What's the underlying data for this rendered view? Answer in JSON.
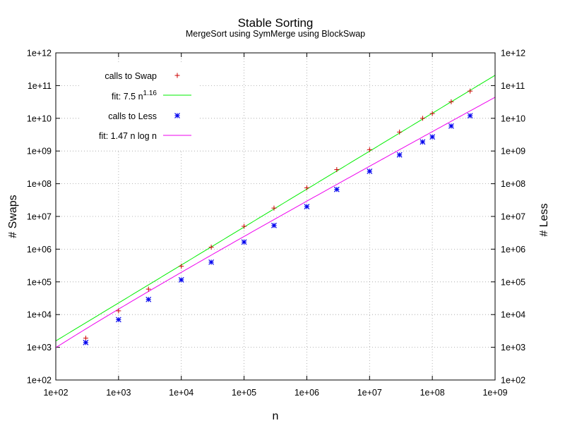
{
  "chart_data": {
    "type": "scatter",
    "title": "Stable Sorting",
    "subtitle": "MergeSort using SymMerge using BlockSwap",
    "xlabel": "n",
    "ylabel": "# Swaps",
    "y2label": "# Less",
    "xscale": "log",
    "yscale": "log",
    "xlim": [
      100,
      1000000000
    ],
    "ylim": [
      100,
      1000000000000
    ],
    "grid": true,
    "legend_position": "top-left",
    "x_ticks": [
      "1e+02",
      "1e+03",
      "1e+04",
      "1e+05",
      "1e+06",
      "1e+07",
      "1e+08",
      "1e+09"
    ],
    "y_ticks": [
      "1e+02",
      "1e+03",
      "1e+04",
      "1e+05",
      "1e+06",
      "1e+07",
      "1e+08",
      "1e+09",
      "1e+10",
      "1e+11",
      "1e+12"
    ],
    "y2_ticks": [
      "1e+02",
      "1e+03",
      "1e+04",
      "1e+05",
      "1e+06",
      "1e+07",
      "1e+08",
      "1e+09",
      "1e+10",
      "1e+11",
      "1e+12"
    ],
    "series": [
      {
        "name": "calls to Swap",
        "kind": "points",
        "marker": "plus",
        "color": "#cc0000",
        "x": [
          300,
          1000,
          3000,
          10000,
          30000,
          100000,
          300000,
          1000000,
          3000000,
          10000000,
          30000000,
          70000000,
          100000000,
          200000000,
          400000000
        ],
        "y": [
          1900,
          13000,
          60000,
          300000,
          1150000,
          5000000,
          18000000,
          75000000,
          270000000,
          1100000000,
          3800000000,
          10000000000,
          14000000000,
          32000000000,
          68000000000
        ]
      },
      {
        "name": "fit: 7.5 n",
        "name_superscript": "1.16",
        "kind": "line",
        "color": "#00ee00",
        "fit": {
          "form": "power",
          "a": 7.5,
          "b": 1.16
        }
      },
      {
        "name": "calls to Less",
        "kind": "points",
        "marker": "star",
        "color": "#0000ee",
        "x": [
          300,
          1000,
          3000,
          10000,
          30000,
          100000,
          300000,
          1000000,
          3000000,
          10000000,
          30000000,
          70000000,
          100000000,
          200000000,
          400000000
        ],
        "y": [
          1400,
          7000,
          29000,
          115000,
          400000,
          1650000,
          5300000,
          20000000,
          67000000,
          240000000,
          760000000,
          1900000000,
          2700000000,
          5800000000,
          12000000000
        ]
      },
      {
        "name": "fit: 1.47 n log n",
        "kind": "line",
        "color": "#ee00ee",
        "fit": {
          "form": "nlogn",
          "a": 1.47
        }
      }
    ]
  }
}
